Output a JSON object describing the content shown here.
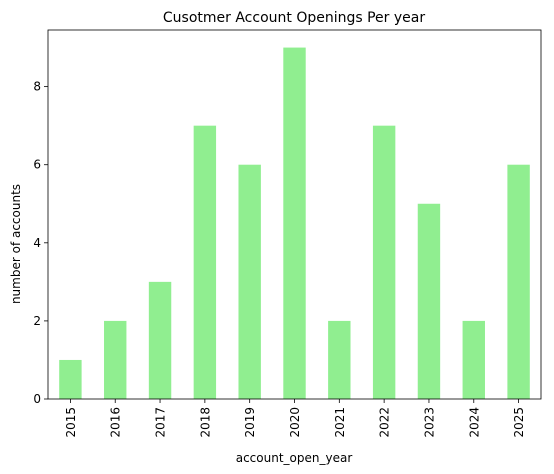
{
  "chart_data": {
    "type": "bar",
    "title": "Cusotmer Account Openings Per year",
    "xlabel": "account_open_year",
    "ylabel": "number of accounts",
    "categories": [
      "2015",
      "2016",
      "2017",
      "2018",
      "2019",
      "2020",
      "2021",
      "2022",
      "2023",
      "2024",
      "2025"
    ],
    "values": [
      1,
      2,
      3,
      7,
      6,
      9,
      2,
      7,
      5,
      2,
      6
    ],
    "ylim": [
      0,
      9.45
    ],
    "yticks": [
      0,
      2,
      4,
      6,
      8
    ],
    "grid": false,
    "legend": "none",
    "bar_color": "#90ee90"
  }
}
